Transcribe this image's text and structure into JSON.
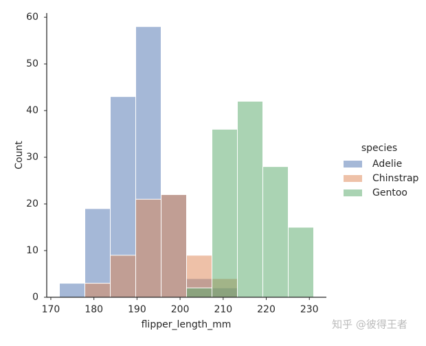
{
  "chart_data": {
    "type": "histogram",
    "xlabel": "flipper_length_mm",
    "ylabel": "Count",
    "bins": [
      172,
      177.9,
      183.8,
      189.7,
      195.6,
      201.5,
      207.4,
      213.3,
      219.2,
      225.1,
      231
    ],
    "series": [
      {
        "name": "Adelie",
        "color": "#4c72b0",
        "values": [
          3,
          19,
          43,
          58,
          22,
          4,
          2,
          0,
          0,
          0
        ]
      },
      {
        "name": "Chinstrap",
        "color": "#dd8452",
        "values": [
          0,
          3,
          9,
          21,
          22,
          9,
          4,
          0,
          0,
          0
        ]
      },
      {
        "name": "Gentoo",
        "color": "#55a868",
        "values": [
          0,
          0,
          0,
          0,
          0,
          2,
          36,
          42,
          28,
          15
        ]
      }
    ],
    "legend_title": "species",
    "legend": "right",
    "xlim": [
      169.05,
      233.95
    ],
    "xticks": [
      170,
      180,
      190,
      200,
      210,
      220,
      230
    ],
    "ylim": [
      0,
      60.9
    ],
    "yticks": [
      0,
      10,
      20,
      30,
      40,
      50,
      60
    ]
  },
  "watermark": "知乎 @彼得王者"
}
